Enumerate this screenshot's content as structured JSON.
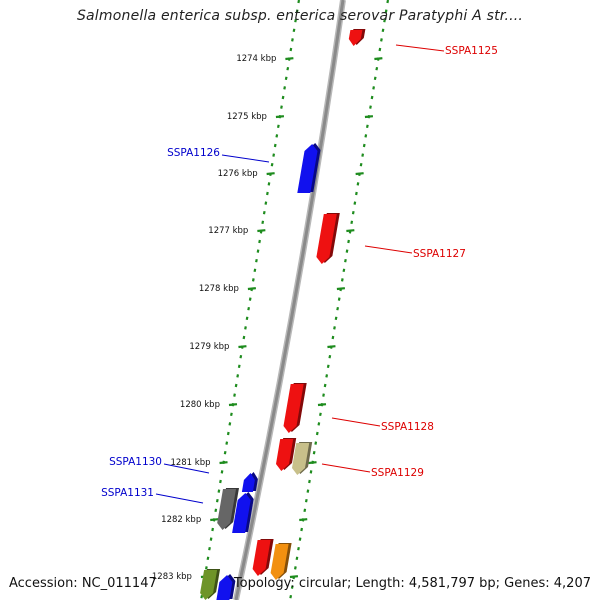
{
  "title": "Salmonella enterica subsp. enterica serovar Paratyphi A str....",
  "footer": {
    "accession": "Accession: NC_011147",
    "summary": "Topology: circular; Length: 4,581,797 bp; Genes: 4,207"
  },
  "colors": {
    "backbone": "#8a8a8a",
    "ticks": "#1e8c1e",
    "forward_gene": "#ee1111",
    "reverse_gene": "#1111ee",
    "gray_gene": "#666666",
    "khaki_gene": "#c8c08a",
    "orange_gene": "#f29010",
    "olive_gene": "#6e9428",
    "forward_label": "#dd0000",
    "reverse_label": "#0000cc"
  },
  "scale_labels": [
    "1274 kbp",
    "1275 kbp",
    "1276 kbp",
    "1277 kbp",
    "1278 kbp",
    "1279 kbp",
    "1280 kbp",
    "1281 kbp",
    "1282 kbp",
    "1283 kbp"
  ],
  "gene_labels": {
    "forward": [
      "SSPA1125",
      "SSPA1127",
      "SSPA1128",
      "SSPA1129"
    ],
    "reverse": [
      "SSPA1126",
      "SSPA1130",
      "SSPA1131"
    ]
  }
}
